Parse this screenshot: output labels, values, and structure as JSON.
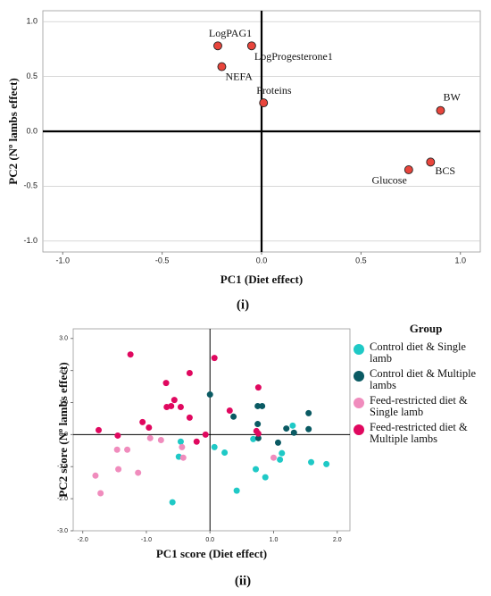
{
  "chart_data": [
    {
      "type": "scatter",
      "x_label": "PC1 (Diet effect)",
      "y_label": "PC2 (Nº lambs effect)",
      "caption": "(i)",
      "labels": [
        "LogPAG1",
        "LogProgesterone1",
        "NEFA",
        "Proteins",
        "BW",
        "BCS",
        "Glucose"
      ],
      "x": [
        -0.22,
        -0.05,
        -0.2,
        0.01,
        0.9,
        0.85,
        0.74
      ],
      "values": [
        0.78,
        0.78,
        0.59,
        0.26,
        0.19,
        -0.28,
        -0.35
      ],
      "color": "#e8453c",
      "xlim": [
        -1.1,
        1.1
      ],
      "ylim": [
        -1.1,
        1.1
      ],
      "xticks": [
        {
          "value": -1,
          "label": "-1.0"
        },
        -0.5,
        {
          "value": 0,
          "label": "0.0"
        },
        0.5,
        {
          "value": 1,
          "label": "1.0"
        }
      ],
      "yticks": [
        {
          "value": -1,
          "label": "-1.0"
        },
        -0.5,
        {
          "value": 0,
          "label": "0.0"
        },
        0.5,
        {
          "value": 1,
          "label": "1.0"
        }
      ],
      "grid": true,
      "reference_lines": true
    },
    {
      "type": "scatter",
      "x_label": "PC1 score (Diet effect)",
      "y_label": "PC2 score (Nº lambs effect)",
      "caption": "(ii)",
      "legend_title": "Group",
      "series": [
        {
          "name": "Control diet & Single lamb",
          "color": "#1fc9c6",
          "x": [
            -0.46,
            -0.49,
            -0.59,
            0.07,
            0.23,
            0.42,
            0.68,
            0.72,
            0.87,
            1.1,
            1.13,
            1.3,
            1.59,
            1.83
          ],
          "values": [
            -0.22,
            -0.69,
            -2.11,
            -0.39,
            -0.56,
            -1.75,
            -0.14,
            -1.08,
            -1.33,
            -0.78,
            -0.58,
            0.28,
            -0.86,
            -0.92
          ]
        },
        {
          "name": "Control diet & Multiple lambs",
          "color": "#0a5a63",
          "x": [
            0.0,
            0.37,
            0.75,
            0.82,
            0.75,
            0.76,
            1.07,
            1.2,
            1.32,
            1.55,
            1.55
          ],
          "values": [
            1.25,
            0.56,
            0.89,
            0.89,
            0.33,
            -0.11,
            -0.25,
            0.19,
            0.06,
            0.17,
            0.67
          ]
        },
        {
          "name": "Feed-restricted diet & Single lamb",
          "color": "#f08cbd",
          "x": [
            -1.8,
            -1.72,
            -1.46,
            -1.44,
            -1.3,
            -1.13,
            -0.94,
            -0.77,
            -0.44,
            -0.42,
            1.0
          ],
          "values": [
            -1.28,
            -1.83,
            -0.47,
            -1.08,
            -0.47,
            -1.19,
            -0.11,
            -0.17,
            -0.39,
            -0.72,
            -0.72
          ]
        },
        {
          "name": "Feed-restricted diet & Multiple lambs",
          "color": "#e0085f",
          "x": [
            -1.25,
            -1.75,
            -1.45,
            -1.06,
            -0.96,
            -0.69,
            -0.56,
            -0.61,
            -0.68,
            -0.46,
            -0.32,
            -0.32,
            -0.21,
            -0.07,
            0.07,
            0.31,
            0.76,
            0.73,
            0.76
          ],
          "values": [
            2.5,
            0.14,
            -0.03,
            0.39,
            0.22,
            1.61,
            1.08,
            0.89,
            0.86,
            0.86,
            1.92,
            0.53,
            -0.22,
            0.0,
            2.39,
            0.75,
            1.47,
            0.11,
            0.03
          ]
        }
      ],
      "xlim": [
        -2.15,
        2.2
      ],
      "ylim": [
        -3,
        3.3
      ],
      "xticks": [
        {
          "value": -2,
          "label": "-2.0"
        },
        {
          "value": -1,
          "label": "-1.0"
        },
        {
          "value": 0,
          "label": "0.0"
        },
        {
          "value": 1,
          "label": "1.0"
        },
        {
          "value": 2,
          "label": "2.0"
        }
      ],
      "yticks": [
        {
          "value": -3,
          "label": "-3.0"
        },
        {
          "value": -2,
          "label": "-2.0"
        },
        {
          "value": -1,
          "label": "-1.0"
        },
        {
          "value": 0,
          "label": "0.0"
        },
        {
          "value": 1,
          "label": "1.0"
        },
        {
          "value": 2,
          "label": "2.0"
        },
        {
          "value": 3,
          "label": "3.0"
        }
      ],
      "grid": false,
      "reference_lines": true
    }
  ]
}
